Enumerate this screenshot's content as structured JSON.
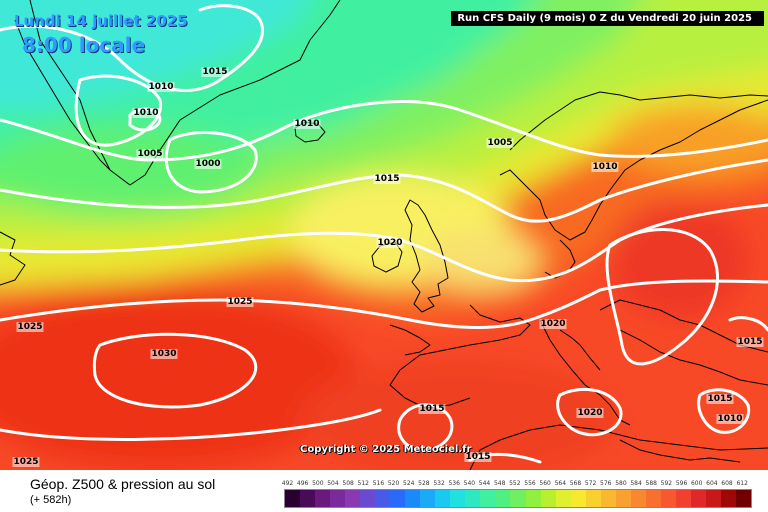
{
  "header": {
    "date": "Lundi 14 juillet 2025",
    "time": "8:00 locale",
    "run_info": "Run CFS Daily (9 mois) 0 Z du Vendredi 20 juin 2025"
  },
  "footer": {
    "title": "Géop. Z500 & pression au sol",
    "forecast_hour": "(+ 582h)",
    "copyright": "Copyright © 2025 Meteociel.fr"
  },
  "isobar_labels": [
    {
      "text": "1015"
    },
    {
      "text": "1010"
    },
    {
      "text": "1010"
    },
    {
      "text": "1005"
    },
    {
      "text": "1000"
    },
    {
      "text": "1010"
    },
    {
      "text": "1005"
    },
    {
      "text": "1015"
    },
    {
      "text": "1010"
    },
    {
      "text": "1020"
    },
    {
      "text": "1025"
    },
    {
      "text": "1025"
    },
    {
      "text": "1030"
    },
    {
      "text": "1020"
    },
    {
      "text": "1015"
    },
    {
      "text": "1020"
    },
    {
      "text": "1015"
    },
    {
      "text": "1015"
    },
    {
      "text": "1010"
    },
    {
      "text": "1025"
    },
    {
      "text": "1015"
    }
  ],
  "scale": {
    "values": [
      "492",
      "496",
      "500",
      "504",
      "508",
      "512",
      "516",
      "520",
      "524",
      "528",
      "532",
      "536",
      "540",
      "544",
      "548",
      "552",
      "556",
      "560",
      "564",
      "568",
      "572",
      "576",
      "580",
      "584",
      "588",
      "592",
      "596",
      "600",
      "604",
      "608",
      "612"
    ],
    "colors": [
      "#2a0030",
      "#4a0a5a",
      "#6a1a7a",
      "#7a2a9a",
      "#8a3ab0",
      "#6a4ad0",
      "#4a5ae8",
      "#2a6af8",
      "#1a8af8",
      "#1aaaf8",
      "#1ac8f0",
      "#20e0e0",
      "#30e8c0",
      "#40f0a0",
      "#50f080",
      "#70f060",
      "#90f040",
      "#b8f030",
      "#e0f030",
      "#f8e830",
      "#f8d030",
      "#f8b830",
      "#f8a030",
      "#f88830",
      "#f87030",
      "#f85830",
      "#f04030",
      "#e02828",
      "#c81818",
      "#a00808",
      "#700000"
    ]
  },
  "colors": {
    "title_blue": "#3399ff",
    "isobar": "#ffffff",
    "coastline": "#000000"
  }
}
